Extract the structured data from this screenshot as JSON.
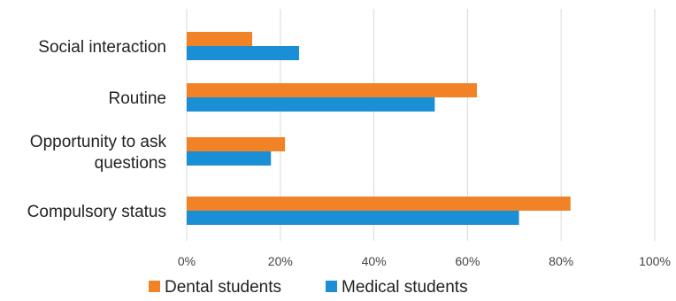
{
  "chart_data": {
    "type": "bar",
    "orientation": "horizontal",
    "categories": [
      [
        "Social interaction"
      ],
      [
        "Routine"
      ],
      [
        "Opportunity to ask",
        "questions"
      ],
      [
        "Compulsory status"
      ]
    ],
    "series": [
      {
        "name": "Dental students",
        "values": [
          14,
          62,
          21,
          82
        ],
        "color": "#f28226"
      },
      {
        "name": "Medical students",
        "values": [
          24,
          53,
          18,
          71
        ],
        "color": "#1b8fd6"
      }
    ],
    "xlim": [
      0,
      100
    ],
    "xticks": [
      0,
      20,
      40,
      60,
      80,
      100
    ],
    "tick_format": "{v}%",
    "grid": true,
    "grid_color": "#d9d9d9",
    "legend_position": "bottom"
  }
}
